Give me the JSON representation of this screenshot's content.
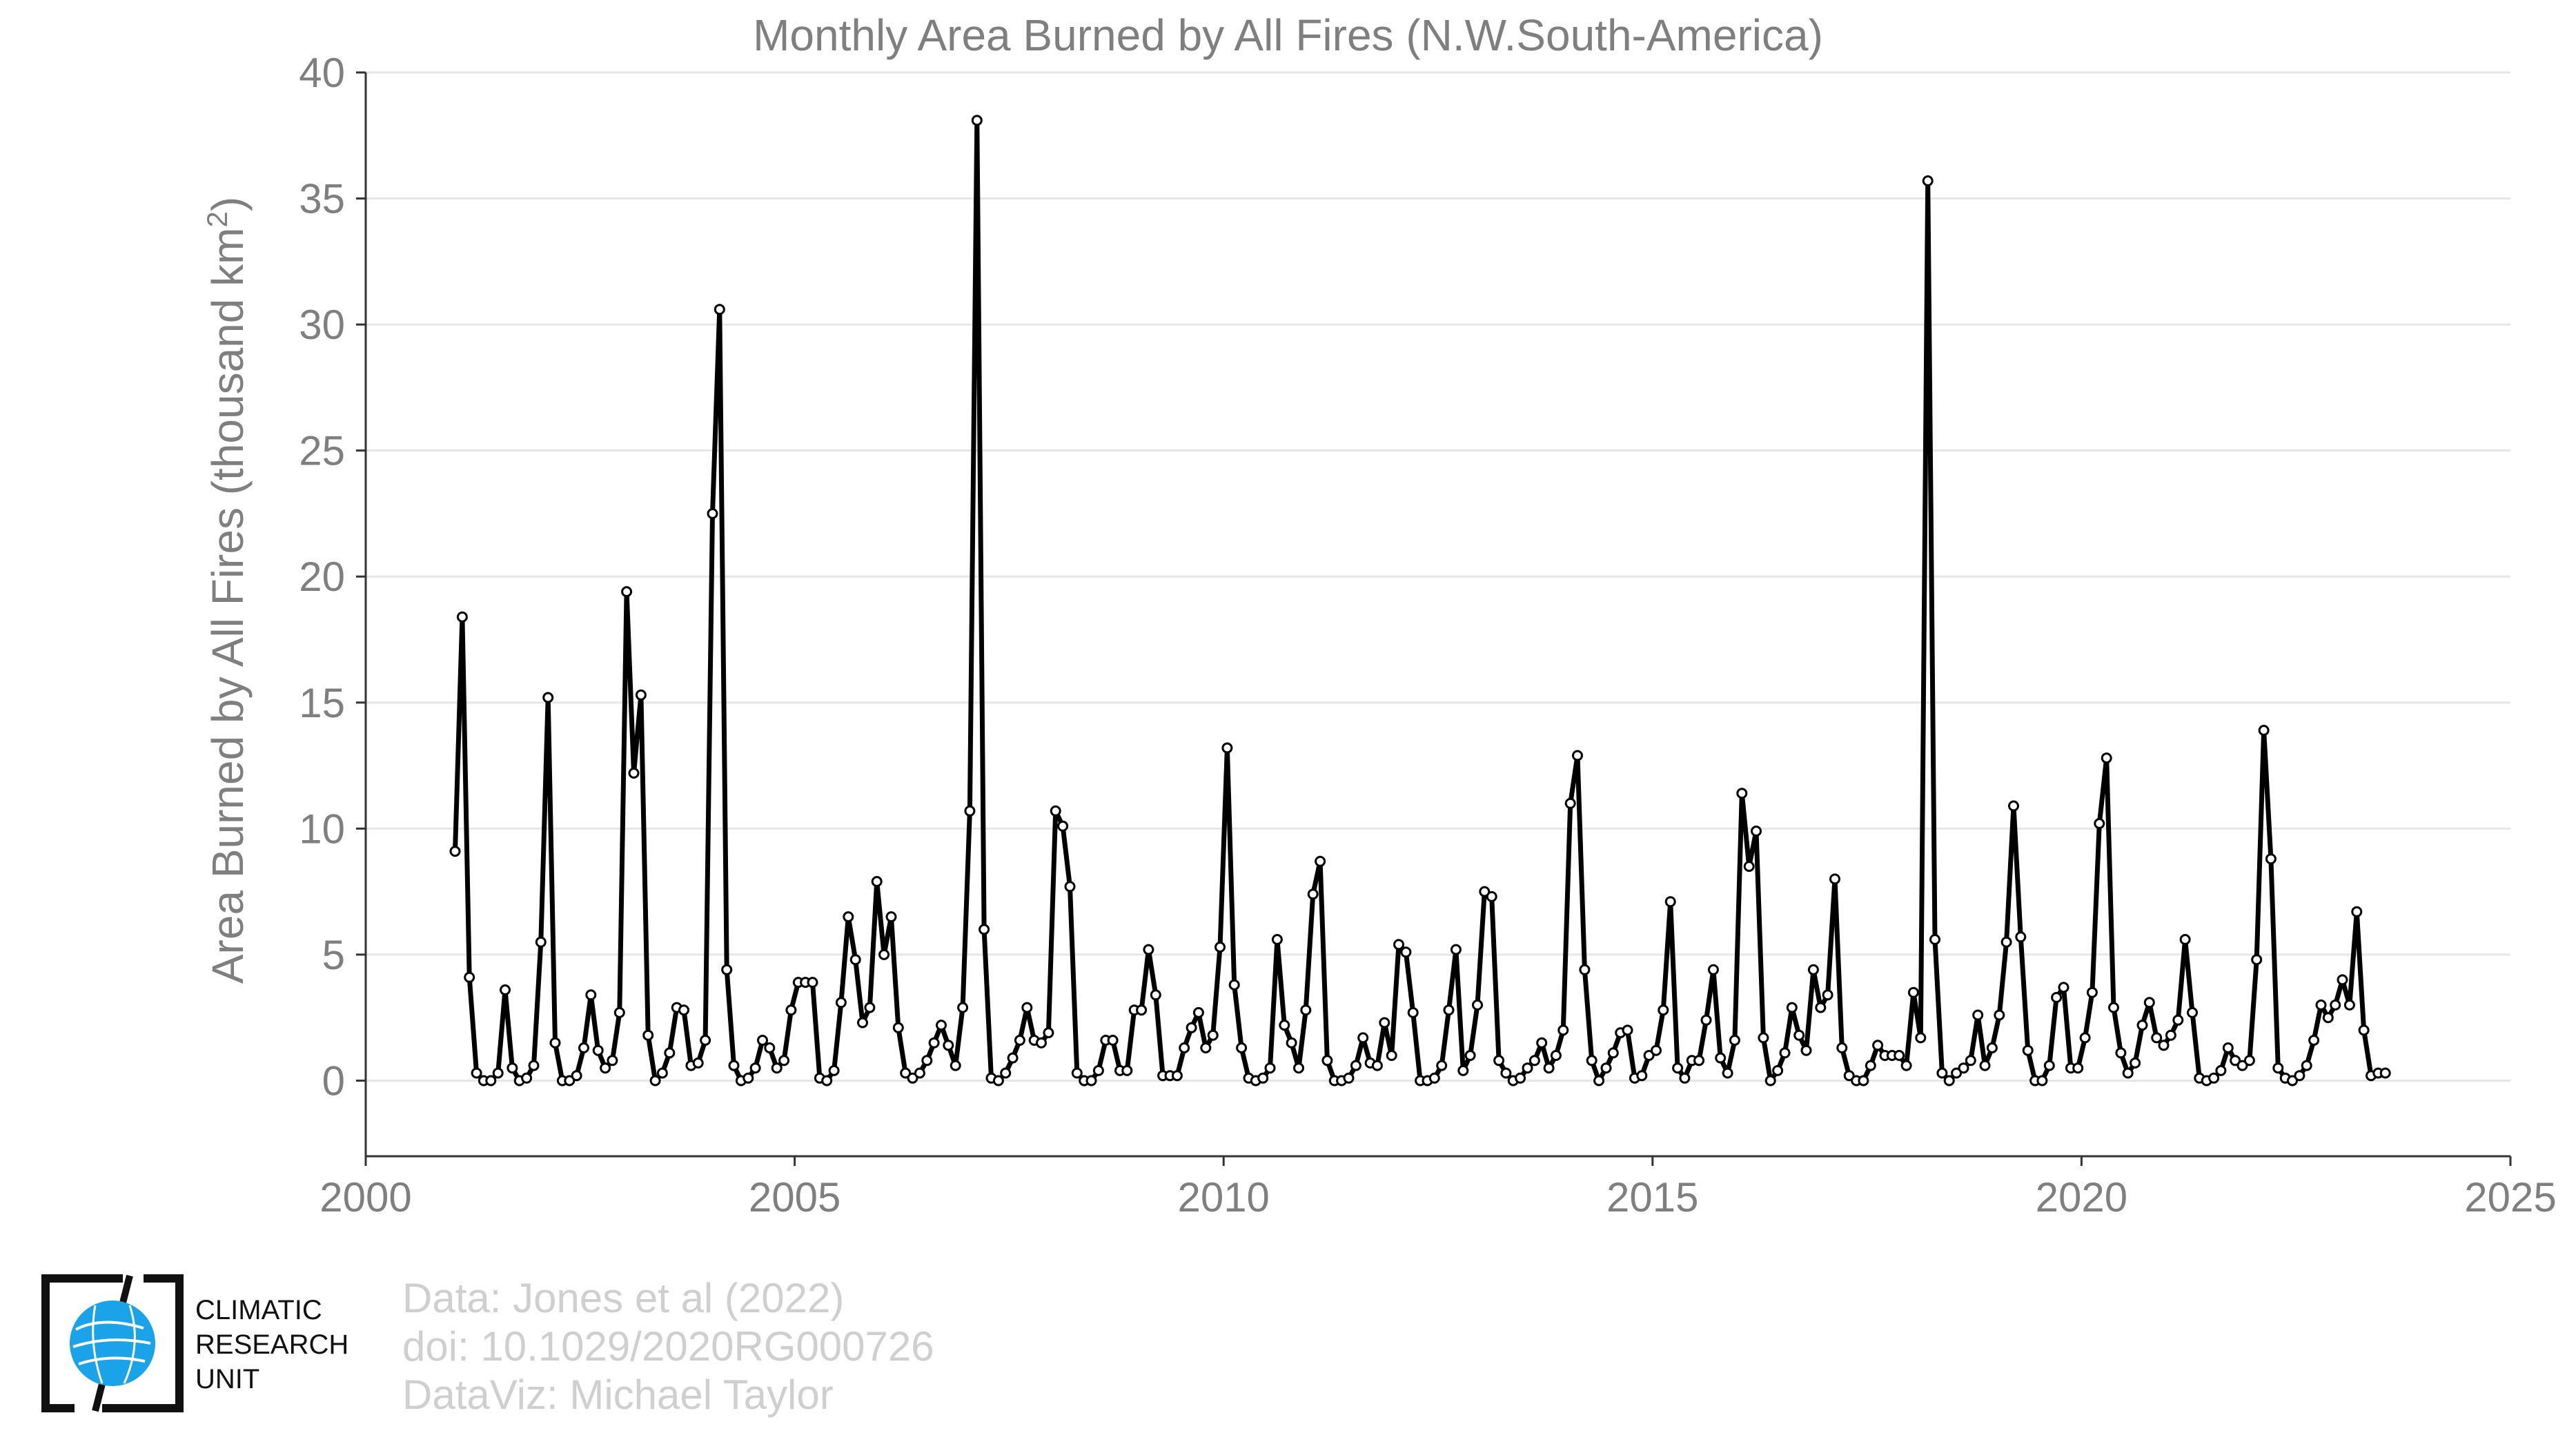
{
  "chart_data": {
    "type": "line",
    "title": "Monthly Area Burned by All Fires (N.W.South-America)",
    "xlabel": "",
    "ylabel": "Area Burned by All Fires (thousand km²)",
    "xlim": [
      2000,
      2025
    ],
    "ylim": [
      -3,
      40
    ],
    "xticks": [
      2000,
      2005,
      2010,
      2015,
      2020,
      2025
    ],
    "yticks": [
      0,
      5,
      10,
      15,
      20,
      25,
      30,
      35,
      40
    ],
    "grid": "horizontal",
    "legend": "none",
    "start": "2001-01",
    "frequency": "monthly",
    "colors": {
      "line": "#000000",
      "marker_fill": "#ffffff",
      "grid": "#e6e6e6",
      "text": "#7f7f7f",
      "logo": "#1aa3e8"
    },
    "series": [
      {
        "values": [
          9.1,
          18.4,
          4.1,
          0.3,
          0.0,
          0.0,
          0.3,
          3.6,
          0.5,
          0.0,
          0.1,
          0.6,
          5.5,
          15.2,
          1.5,
          0.0,
          0.0,
          0.2,
          1.3,
          3.4,
          1.2,
          0.5,
          0.8,
          2.7,
          19.4,
          12.2,
          15.3,
          1.8,
          0.0,
          0.3,
          1.1,
          2.9,
          2.8,
          0.6,
          0.7,
          1.6,
          22.5,
          30.6,
          4.4,
          0.6,
          0.0,
          0.1,
          0.5,
          1.6,
          1.3,
          0.5,
          0.8,
          2.8,
          3.9,
          3.9,
          3.9,
          0.1,
          0.0,
          0.4,
          3.1,
          6.5,
          4.8,
          2.3,
          2.9,
          7.9,
          5.0,
          6.5,
          2.1,
          0.3,
          0.1,
          0.3,
          0.8,
          1.5,
          2.2,
          1.4,
          0.6,
          2.9,
          10.7,
          38.1,
          6.0,
          0.1,
          0.0,
          0.3,
          0.9,
          1.6,
          2.9,
          1.6,
          1.5,
          1.9,
          10.7,
          10.1,
          7.7,
          0.3,
          0.0,
          0.0,
          0.4,
          1.6,
          1.6,
          0.4,
          0.4,
          2.8,
          2.8,
          5.2,
          3.4,
          0.2,
          0.2,
          0.2,
          1.3,
          2.1,
          2.7,
          1.3,
          1.8,
          5.3,
          13.2,
          3.8,
          1.3,
          0.1,
          0.0,
          0.1,
          0.5,
          5.6,
          2.2,
          1.5,
          0.5,
          2.8,
          7.4,
          8.7,
          0.8,
          0.0,
          0.0,
          0.1,
          0.6,
          1.7,
          0.7,
          0.6,
          2.3,
          1.0,
          5.4,
          5.1,
          2.7,
          0.0,
          0.0,
          0.1,
          0.6,
          2.8,
          5.2,
          0.4,
          1.0,
          3.0,
          7.5,
          7.3,
          0.8,
          0.3,
          0.0,
          0.1,
          0.5,
          0.8,
          1.5,
          0.5,
          1.0,
          2.0,
          11.0,
          12.9,
          4.4,
          0.8,
          0.0,
          0.5,
          1.1,
          1.9,
          2.0,
          0.1,
          0.2,
          1.0,
          1.2,
          2.8,
          7.1,
          0.5,
          0.1,
          0.8,
          0.8,
          2.4,
          4.4,
          0.9,
          0.3,
          1.6,
          11.4,
          8.5,
          9.9,
          1.7,
          0.0,
          0.4,
          1.1,
          2.9,
          1.8,
          1.2,
          4.4,
          2.9,
          3.4,
          8.0,
          1.3,
          0.2,
          0.0,
          0.0,
          0.6,
          1.4,
          1.0,
          1.0,
          1.0,
          0.6,
          3.5,
          1.7,
          35.7,
          5.6,
          0.3,
          0.0,
          0.3,
          0.5,
          0.8,
          2.6,
          0.6,
          1.3,
          2.6,
          5.5,
          10.9,
          5.7,
          1.2,
          0.0,
          0.0,
          0.6,
          3.3,
          3.7,
          0.5,
          0.5,
          1.7,
          3.5,
          10.2,
          12.8,
          2.9,
          1.1,
          0.3,
          0.7,
          2.2,
          3.1,
          1.7,
          1.4,
          1.8,
          2.4,
          5.6,
          2.7,
          0.1,
          0.0,
          0.1,
          0.4,
          1.3,
          0.8,
          0.6,
          0.8,
          4.8,
          13.9,
          8.8,
          0.5,
          0.1,
          0.0,
          0.2,
          0.6,
          1.6,
          3.0,
          2.5,
          3.0,
          4.0,
          3.0,
          6.7,
          2.0,
          0.2,
          0.3,
          0.3
        ]
      }
    ]
  },
  "footer": {
    "data_source": "Data: Jones et al (2022)",
    "doi": "doi: 10.1029/2020RG000726",
    "dataviz": "DataViz: Michael Taylor"
  },
  "logo": {
    "line1": "CLIMATIC",
    "line2": "RESEARCH",
    "line3": "UNIT",
    "icon": "globe-icon"
  }
}
